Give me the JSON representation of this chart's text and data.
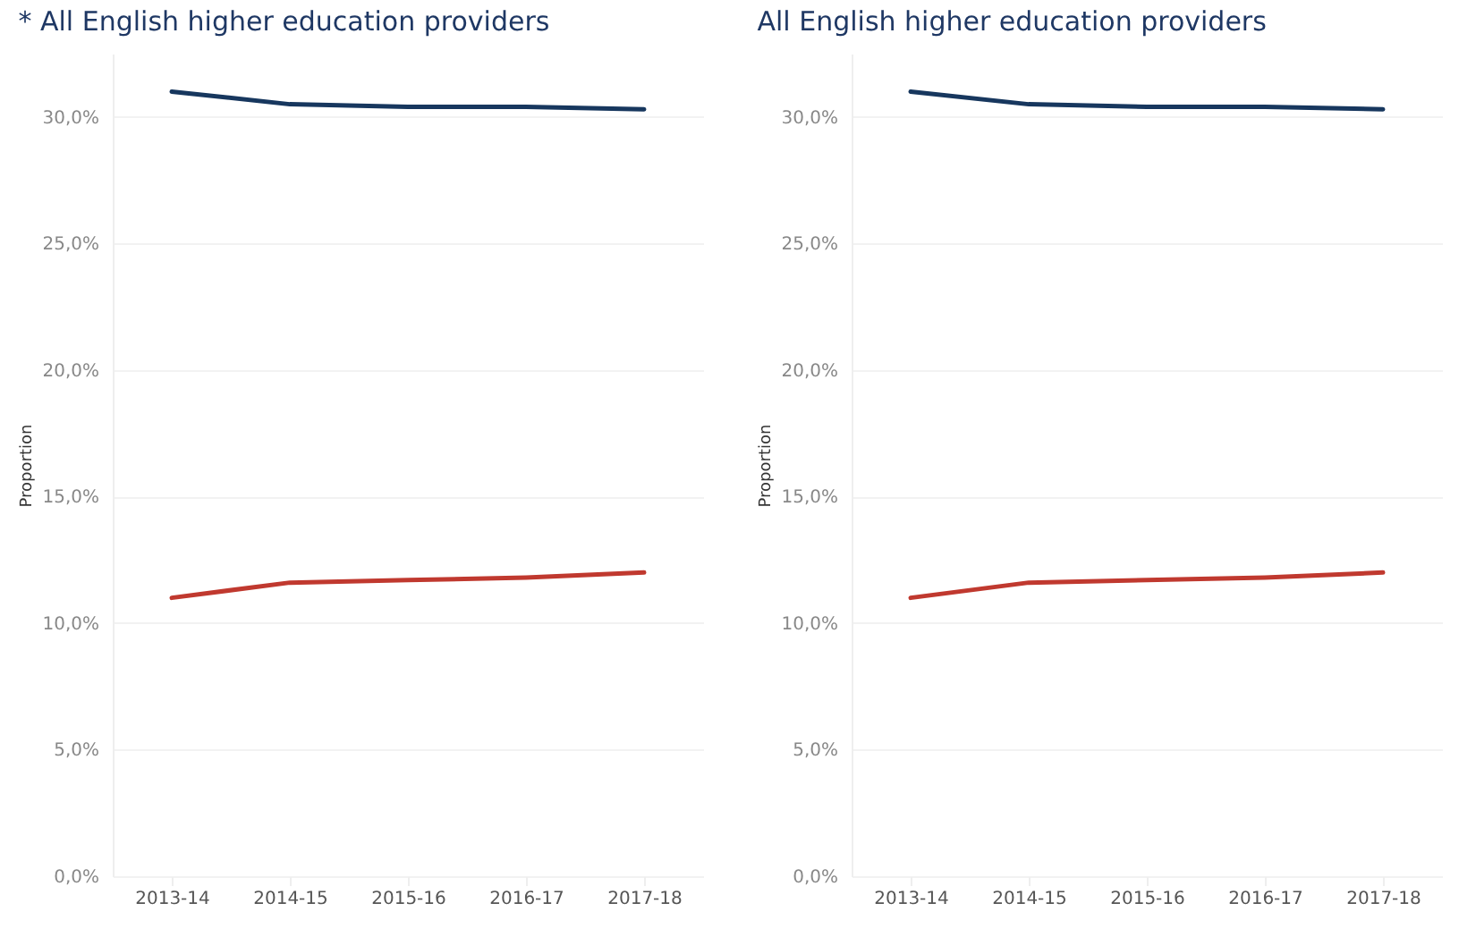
{
  "chart_data": [
    {
      "type": "line",
      "title": "* All English higher education providers",
      "ylabel": "Proportion",
      "categories": [
        "2013-14",
        "2014-15",
        "2015-16",
        "2016-17",
        "2017-18"
      ],
      "ylim": [
        0,
        32.5
      ],
      "yticks": [
        {
          "value": 0,
          "label": "0,0%"
        },
        {
          "value": 5,
          "label": "5,0%"
        },
        {
          "value": 10,
          "label": "10,0%"
        },
        {
          "value": 15,
          "label": "15,0%"
        },
        {
          "value": 20,
          "label": "20,0%"
        },
        {
          "value": 25,
          "label": "25,0%"
        },
        {
          "value": 30,
          "label": "30,0%"
        }
      ],
      "grid": "y",
      "line_style": "solid",
      "series": [
        {
          "color": "#17375e",
          "values": [
            31.0,
            30.5,
            30.4,
            30.4,
            30.3
          ]
        },
        {
          "color": "#c0392f",
          "values": [
            11.0,
            11.6,
            11.7,
            11.8,
            12.0
          ]
        }
      ]
    },
    {
      "type": "line",
      "title": "All English higher education providers",
      "ylabel": "Proportion",
      "categories": [
        "2013-14",
        "2014-15",
        "2015-16",
        "2016-17",
        "2017-18"
      ],
      "ylim": [
        0,
        32.5
      ],
      "yticks": [
        {
          "value": 0,
          "label": "0,0%"
        },
        {
          "value": 5,
          "label": "5,0%"
        },
        {
          "value": 10,
          "label": "10,0%"
        },
        {
          "value": 15,
          "label": "15,0%"
        },
        {
          "value": 20,
          "label": "20,0%"
        },
        {
          "value": 25,
          "label": "25,0%"
        },
        {
          "value": 30,
          "label": "30,0%"
        }
      ],
      "grid": "y",
      "line_style": "solid",
      "series": [
        {
          "color": "#17375e",
          "values": [
            31.0,
            30.5,
            30.4,
            30.4,
            30.3
          ]
        },
        {
          "color": "#c0392f",
          "values": [
            11.0,
            11.6,
            11.7,
            11.8,
            12.0
          ]
        }
      ]
    }
  ]
}
